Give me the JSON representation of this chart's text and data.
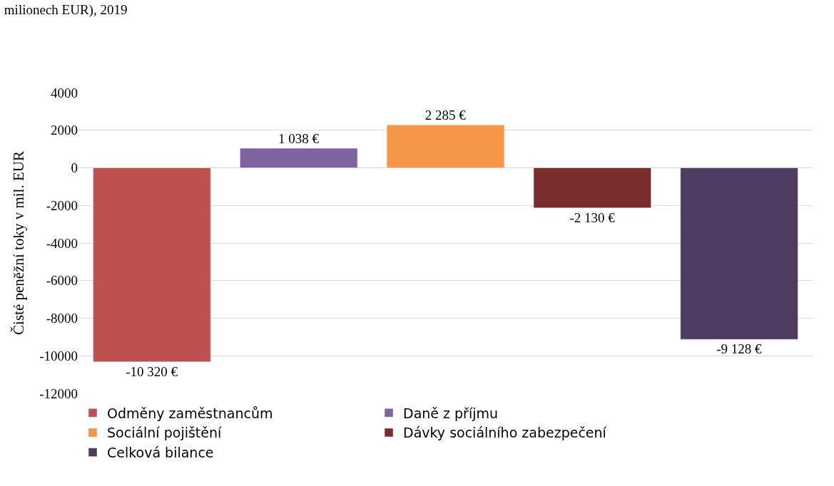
{
  "chart_data": {
    "type": "bar",
    "title": "milionech EUR), 2019",
    "ylabel": "Čisté peněžní toky v mil. EUR",
    "categories": [
      null,
      null,
      null,
      null,
      null
    ],
    "series": [
      {
        "name": "Odměny zaměstnancům",
        "color": "#c0504d",
        "values": [
          -10320,
          null,
          null,
          null,
          null
        ],
        "value_labels": [
          "-10 320 €",
          null,
          null,
          null,
          null
        ]
      },
      {
        "name": "Daně z příjmu",
        "color": "#8064a2",
        "values": [
          null,
          1038,
          null,
          null,
          null
        ],
        "value_labels": [
          null,
          "1 038 €",
          null,
          null,
          null
        ]
      },
      {
        "name": "Sociální pojištění",
        "color": "#f79646",
        "values": [
          null,
          null,
          2285,
          null,
          null
        ],
        "value_labels": [
          null,
          null,
          "2 285 €",
          null,
          null
        ]
      },
      {
        "name": "Dávky sociálního zabezpečení",
        "color": "#7b2c2c",
        "values": [
          null,
          null,
          null,
          -2130,
          null
        ],
        "value_labels": [
          null,
          null,
          null,
          "-2 130 €",
          null
        ]
      },
      {
        "name": "Celková bilance",
        "color": "#4f3b60",
        "values": [
          null,
          null,
          null,
          null,
          -9128
        ],
        "value_labels": [
          null,
          null,
          null,
          null,
          "-9 128 €"
        ]
      }
    ],
    "ylim": [
      -12000,
      4000
    ],
    "yticks": [
      -12000,
      -10000,
      -8000,
      -6000,
      -4000,
      -2000,
      0,
      2000,
      4000
    ],
    "grid": "y",
    "legend": "bottom"
  }
}
